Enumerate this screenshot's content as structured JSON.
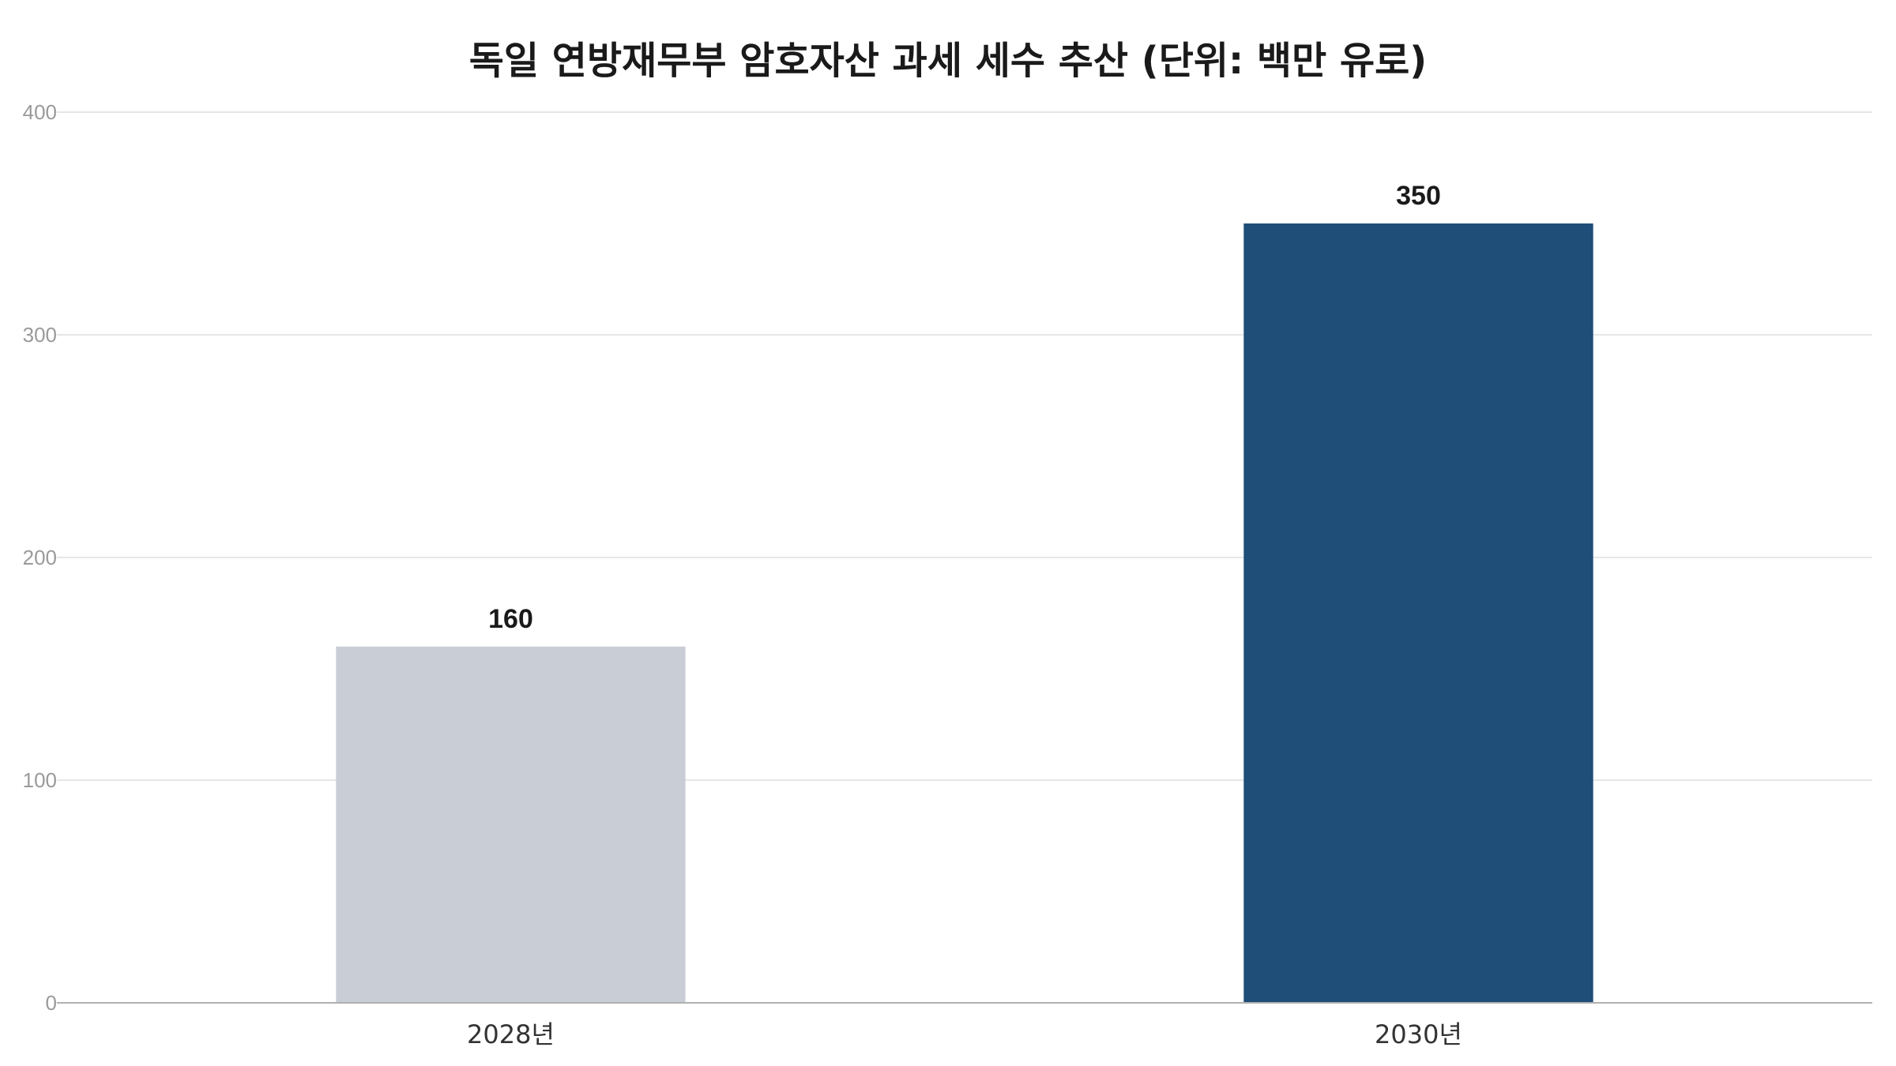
{
  "chart_data": {
    "type": "bar",
    "title": "독일 연방재무부 암호자산 과세 세수 추산 (단위: 백만 유로)",
    "xlabel": "",
    "ylabel": "",
    "categories": [
      "2028년",
      "2030년"
    ],
    "values": [
      160,
      350
    ],
    "data_labels": [
      "160",
      "350"
    ],
    "y_ticks": [
      0,
      100,
      200,
      300,
      400
    ],
    "ylim": [
      0,
      400
    ],
    "grid": true,
    "legend": "none",
    "bar_colors": [
      "#c9ced6",
      "#1f4e79"
    ]
  },
  "colors": {
    "background": "#ffffff",
    "grid": "#e6e6e6",
    "axis": "#b0b0b0"
  }
}
